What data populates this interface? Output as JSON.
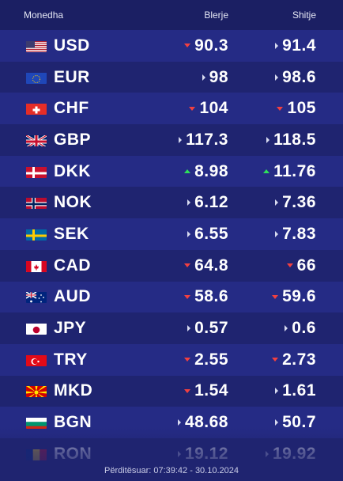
{
  "header": {
    "currency": "Monedha",
    "buy": "Blerje",
    "sell": "Shitje"
  },
  "rows": [
    {
      "code": "USD",
      "flag": "us-flag",
      "buy": "90.3",
      "buy_trend": "down",
      "sell": "91.4",
      "sell_trend": "same"
    },
    {
      "code": "EUR",
      "flag": "eu-flag",
      "buy": "98",
      "buy_trend": "same",
      "sell": "98.6",
      "sell_trend": "same"
    },
    {
      "code": "CHF",
      "flag": "ch-flag",
      "buy": "104",
      "buy_trend": "down",
      "sell": "105",
      "sell_trend": "down"
    },
    {
      "code": "GBP",
      "flag": "gb-flag",
      "buy": "117.3",
      "buy_trend": "same",
      "sell": "118.5",
      "sell_trend": "same"
    },
    {
      "code": "DKK",
      "flag": "dk-flag",
      "buy": "8.98",
      "buy_trend": "up",
      "sell": "11.76",
      "sell_trend": "up"
    },
    {
      "code": "NOK",
      "flag": "no-flag",
      "buy": "6.12",
      "buy_trend": "same",
      "sell": "7.36",
      "sell_trend": "same"
    },
    {
      "code": "SEK",
      "flag": "se-flag",
      "buy": "6.55",
      "buy_trend": "same",
      "sell": "7.83",
      "sell_trend": "same"
    },
    {
      "code": "CAD",
      "flag": "ca-flag",
      "buy": "64.8",
      "buy_trend": "down",
      "sell": "66",
      "sell_trend": "down"
    },
    {
      "code": "AUD",
      "flag": "au-flag",
      "buy": "58.6",
      "buy_trend": "down",
      "sell": "59.6",
      "sell_trend": "down"
    },
    {
      "code": "JPY",
      "flag": "jp-flag",
      "buy": "0.57",
      "buy_trend": "same",
      "sell": "0.6",
      "sell_trend": "same"
    },
    {
      "code": "TRY",
      "flag": "tr-flag",
      "buy": "2.55",
      "buy_trend": "down",
      "sell": "2.73",
      "sell_trend": "down"
    },
    {
      "code": "MKD",
      "flag": "mk-flag",
      "buy": "1.54",
      "buy_trend": "down",
      "sell": "1.61",
      "sell_trend": "same"
    },
    {
      "code": "BGN",
      "flag": "bg-flag",
      "buy": "48.68",
      "buy_trend": "same",
      "sell": "50.7",
      "sell_trend": "same"
    },
    {
      "code": "RON",
      "flag": "ro-flag",
      "buy": "19.12",
      "buy_trend": "same",
      "sell": "19.92",
      "sell_trend": "same"
    }
  ],
  "footer": {
    "updated": "Përditësuar: 07:39:42 - 30.10.2024"
  }
}
